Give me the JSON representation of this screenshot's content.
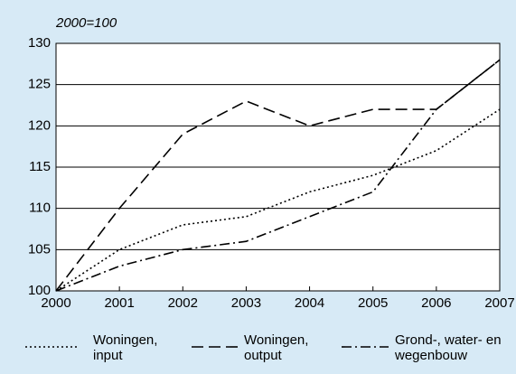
{
  "chart_data": {
    "type": "line",
    "subtitle": "2000=100",
    "x": [
      2000,
      2001,
      2002,
      2003,
      2004,
      2005,
      2006,
      2007
    ],
    "xlim": [
      2000,
      2007
    ],
    "xticks": [
      2000,
      2001,
      2002,
      2003,
      2004,
      2005,
      2006,
      2007
    ],
    "ylim": [
      100,
      130
    ],
    "yticks": [
      100,
      105,
      110,
      115,
      120,
      125,
      130
    ],
    "grid": true,
    "legend": "bottom",
    "series": [
      {
        "name": "Woningen, input",
        "color": "#000000",
        "dash": "dotted",
        "values": [
          100,
          105,
          108,
          109,
          112,
          114,
          117,
          122
        ]
      },
      {
        "name": "Woningen, output",
        "color": "#000000",
        "dash": "dashed",
        "values": [
          100,
          110,
          119,
          123,
          120,
          122,
          122,
          128
        ]
      },
      {
        "name": "Grond-, water- en wegenbouw",
        "color": "#000000",
        "dash": "dashdot",
        "values": [
          100,
          103,
          105,
          106,
          109,
          112,
          122,
          128
        ]
      }
    ]
  }
}
